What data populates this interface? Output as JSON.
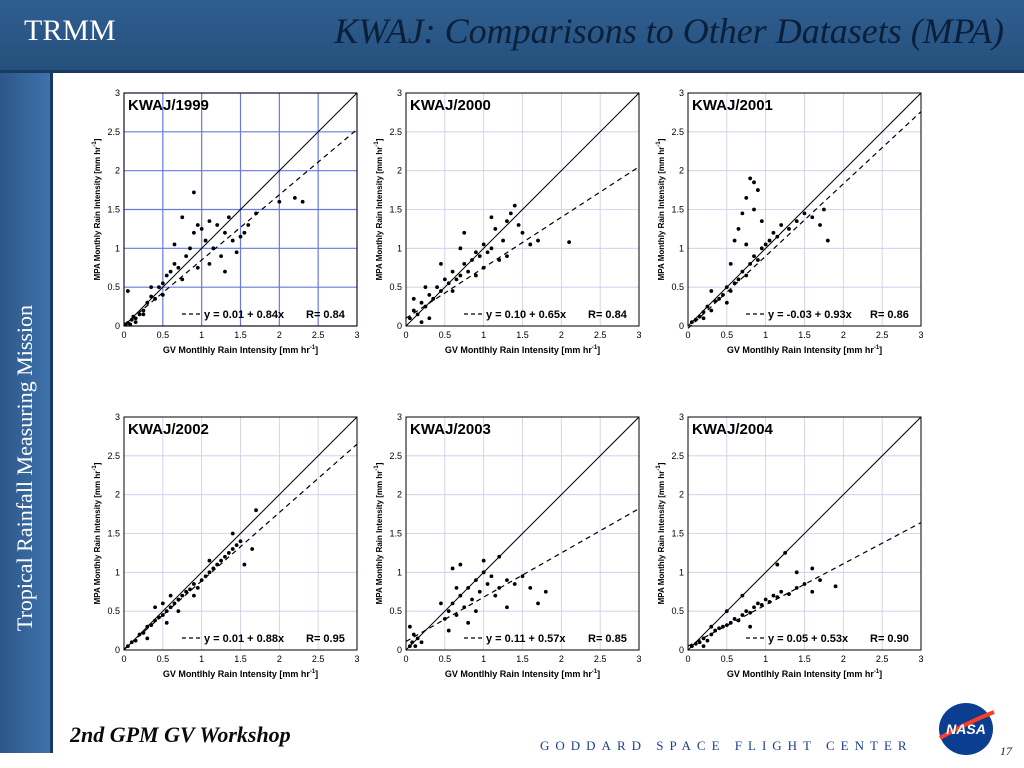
{
  "header": {
    "brand": "TRMM",
    "title": "KWAJ: Comparisons to Other Datasets (MPA)"
  },
  "sidebar": {
    "text": "Tropical Rainfall Measuring Mission"
  },
  "footer": {
    "workshop": "2nd GPM GV Workshop",
    "center": "GODDARD SPACE FLIGHT CENTER",
    "page": "17",
    "logo_text": "NASA"
  },
  "colors": {
    "header": "#2f5e8f",
    "sidebar": "#3f73ac",
    "grid": "#c8cce8",
    "grid_highlight": "#6a78e0",
    "footer_text": "#1c3f8c"
  },
  "chart_data": [
    {
      "type": "scatter",
      "title": "KWAJ/1999",
      "xlabel": "GV Montlhly Rain Intensity [mm hr",
      "ylabel": "MPA Monthly Rain Intensity [mm hr",
      "xlim": [
        0,
        3
      ],
      "ylim": [
        0,
        3
      ],
      "ticks": [
        "0",
        "0.5",
        "1",
        "1.5",
        "2",
        "2.5",
        "3"
      ],
      "grid": true,
      "legend_position": "bottom-right",
      "equation": "y = 0.01 + 0.84x",
      "r": "R= 0.84",
      "fit": {
        "intercept": 0.01,
        "slope": 0.84
      },
      "reference_line": "y = x",
      "points": [
        [
          0.05,
          0.04
        ],
        [
          0.1,
          0.08
        ],
        [
          0.15,
          0.1
        ],
        [
          0.2,
          0.15
        ],
        [
          0.25,
          0.2
        ],
        [
          0.3,
          0.3
        ],
        [
          0.35,
          0.38
        ],
        [
          0.4,
          0.35
        ],
        [
          0.45,
          0.5
        ],
        [
          0.5,
          0.55
        ],
        [
          0.55,
          0.65
        ],
        [
          0.6,
          0.7
        ],
        [
          0.65,
          0.8
        ],
        [
          0.7,
          0.75
        ],
        [
          0.75,
          0.6
        ],
        [
          0.8,
          0.9
        ],
        [
          0.85,
          1.0
        ],
        [
          0.9,
          1.2
        ],
        [
          0.95,
          1.3
        ],
        [
          1.0,
          1.25
        ],
        [
          1.05,
          1.1
        ],
        [
          1.1,
          1.35
        ],
        [
          1.15,
          1.0
        ],
        [
          1.2,
          1.3
        ],
        [
          1.25,
          0.9
        ],
        [
          1.3,
          1.2
        ],
        [
          1.35,
          1.4
        ],
        [
          1.4,
          1.1
        ],
        [
          1.5,
          1.15
        ],
        [
          1.6,
          1.3
        ],
        [
          1.7,
          1.45
        ],
        [
          2.0,
          1.6
        ],
        [
          2.2,
          1.65
        ],
        [
          2.3,
          1.6
        ],
        [
          0.9,
          1.72
        ],
        [
          0.65,
          1.05
        ],
        [
          0.5,
          0.4
        ],
        [
          0.35,
          0.5
        ],
        [
          0.25,
          0.15
        ],
        [
          0.15,
          0.05
        ],
        [
          0.05,
          0.45
        ],
        [
          0.02,
          0.02
        ],
        [
          0.08,
          0.02
        ],
        [
          0.12,
          0.12
        ],
        [
          1.1,
          0.8
        ],
        [
          1.3,
          0.7
        ],
        [
          0.75,
          1.4
        ],
        [
          0.95,
          0.75
        ],
        [
          1.45,
          0.95
        ],
        [
          1.55,
          1.2
        ]
      ]
    },
    {
      "type": "scatter",
      "title": "KWAJ/2000",
      "xlabel": "GV Montlhly Rain Intensity [mm hr",
      "ylabel": "MPA Monthly Rain Intensity [mm hr",
      "xlim": [
        0,
        3
      ],
      "ylim": [
        0,
        3
      ],
      "ticks": [
        "0",
        "0.5",
        "1",
        "1.5",
        "2",
        "2.5",
        "3"
      ],
      "grid": true,
      "legend_position": "bottom-right",
      "equation": "y = 0.10 + 0.65x",
      "r": "R= 0.84",
      "fit": {
        "intercept": 0.1,
        "slope": 0.65
      },
      "reference_line": "y = x",
      "points": [
        [
          0.05,
          0.1
        ],
        [
          0.1,
          0.2
        ],
        [
          0.15,
          0.15
        ],
        [
          0.2,
          0.3
        ],
        [
          0.25,
          0.25
        ],
        [
          0.3,
          0.4
        ],
        [
          0.35,
          0.35
        ],
        [
          0.4,
          0.5
        ],
        [
          0.45,
          0.45
        ],
        [
          0.5,
          0.6
        ],
        [
          0.55,
          0.55
        ],
        [
          0.6,
          0.7
        ],
        [
          0.65,
          0.6
        ],
        [
          0.7,
          0.65
        ],
        [
          0.75,
          0.8
        ],
        [
          0.8,
          0.7
        ],
        [
          0.85,
          0.85
        ],
        [
          0.9,
          0.95
        ],
        [
          0.95,
          0.9
        ],
        [
          1.0,
          1.05
        ],
        [
          1.05,
          0.95
        ],
        [
          1.1,
          1.0
        ],
        [
          1.15,
          1.25
        ],
        [
          1.2,
          0.85
        ],
        [
          1.25,
          1.1
        ],
        [
          1.3,
          1.35
        ],
        [
          1.35,
          1.45
        ],
        [
          1.4,
          1.55
        ],
        [
          1.45,
          1.3
        ],
        [
          1.5,
          1.2
        ],
        [
          1.6,
          1.05
        ],
        [
          1.7,
          1.1
        ],
        [
          2.1,
          1.08
        ],
        [
          0.3,
          0.1
        ],
        [
          0.2,
          0.05
        ],
        [
          0.1,
          0.35
        ],
        [
          0.7,
          1.0
        ],
        [
          0.75,
          1.2
        ],
        [
          0.6,
          0.45
        ],
        [
          0.9,
          0.65
        ],
        [
          1.0,
          0.75
        ],
        [
          1.1,
          1.4
        ],
        [
          1.3,
          0.9
        ],
        [
          0.45,
          0.8
        ],
        [
          0.25,
          0.5
        ]
      ]
    },
    {
      "type": "scatter",
      "title": "KWAJ/2001",
      "xlabel": "GV Montlhly Rain Intensity [mm hr",
      "ylabel": "MPA Monthly Rain Intensity [mm hr",
      "xlim": [
        0,
        3
      ],
      "ylim": [
        0,
        3
      ],
      "ticks": [
        "0",
        "0.5",
        "1",
        "1.5",
        "2",
        "2.5",
        "3"
      ],
      "grid": true,
      "legend_position": "bottom-right",
      "equation": "y = -0.03 + 0.93x",
      "r": "R= 0.86",
      "fit": {
        "intercept": -0.03,
        "slope": 0.93
      },
      "reference_line": "y = x",
      "points": [
        [
          0.05,
          0.05
        ],
        [
          0.1,
          0.08
        ],
        [
          0.15,
          0.12
        ],
        [
          0.2,
          0.18
        ],
        [
          0.25,
          0.25
        ],
        [
          0.3,
          0.2
        ],
        [
          0.35,
          0.32
        ],
        [
          0.4,
          0.35
        ],
        [
          0.45,
          0.4
        ],
        [
          0.5,
          0.5
        ],
        [
          0.55,
          0.45
        ],
        [
          0.6,
          0.55
        ],
        [
          0.65,
          0.6
        ],
        [
          0.7,
          0.7
        ],
        [
          0.75,
          0.65
        ],
        [
          0.8,
          0.8
        ],
        [
          0.85,
          0.9
        ],
        [
          0.9,
          0.85
        ],
        [
          0.95,
          1.0
        ],
        [
          1.0,
          1.05
        ],
        [
          1.05,
          1.1
        ],
        [
          1.1,
          1.2
        ],
        [
          1.15,
          1.15
        ],
        [
          1.2,
          1.3
        ],
        [
          1.3,
          1.25
        ],
        [
          1.4,
          1.35
        ],
        [
          1.5,
          1.45
        ],
        [
          1.6,
          1.4
        ],
        [
          1.7,
          1.3
        ],
        [
          1.75,
          1.5
        ],
        [
          1.8,
          1.1
        ],
        [
          0.8,
          1.9
        ],
        [
          0.85,
          1.85
        ],
        [
          0.9,
          1.75
        ],
        [
          0.75,
          1.65
        ],
        [
          0.7,
          1.45
        ],
        [
          0.65,
          1.25
        ],
        [
          0.6,
          1.1
        ],
        [
          0.85,
          1.5
        ],
        [
          0.95,
          1.35
        ],
        [
          0.75,
          1.05
        ],
        [
          0.55,
          0.8
        ],
        [
          0.5,
          0.3
        ],
        [
          0.3,
          0.45
        ],
        [
          0.2,
          0.1
        ]
      ]
    },
    {
      "type": "scatter",
      "title": "KWAJ/2002",
      "xlabel": "GV Montlhly Rain Intensity [mm hr",
      "ylabel": "MPA Monthly Rain Intensity [mm hr",
      "xlim": [
        0,
        3
      ],
      "ylim": [
        0,
        3
      ],
      "ticks": [
        "0",
        "0.5",
        "1",
        "1.5",
        "2",
        "2.5",
        "3"
      ],
      "grid": true,
      "legend_position": "bottom-right",
      "equation": "y = 0.01 + 0.88x",
      "r": "R= 0.95",
      "fit": {
        "intercept": 0.01,
        "slope": 0.88
      },
      "reference_line": "y = x",
      "points": [
        [
          0.05,
          0.05
        ],
        [
          0.1,
          0.1
        ],
        [
          0.15,
          0.12
        ],
        [
          0.2,
          0.2
        ],
        [
          0.25,
          0.22
        ],
        [
          0.3,
          0.3
        ],
        [
          0.35,
          0.32
        ],
        [
          0.4,
          0.38
        ],
        [
          0.45,
          0.42
        ],
        [
          0.5,
          0.45
        ],
        [
          0.55,
          0.5
        ],
        [
          0.6,
          0.55
        ],
        [
          0.65,
          0.6
        ],
        [
          0.7,
          0.65
        ],
        [
          0.75,
          0.7
        ],
        [
          0.8,
          0.75
        ],
        [
          0.85,
          0.78
        ],
        [
          0.9,
          0.85
        ],
        [
          0.95,
          0.8
        ],
        [
          1.0,
          0.9
        ],
        [
          1.05,
          0.95
        ],
        [
          1.1,
          1.0
        ],
        [
          1.15,
          1.05
        ],
        [
          1.2,
          1.1
        ],
        [
          1.25,
          1.15
        ],
        [
          1.3,
          1.2
        ],
        [
          1.35,
          1.25
        ],
        [
          1.4,
          1.3
        ],
        [
          1.45,
          1.35
        ],
        [
          1.5,
          1.4
        ],
        [
          1.55,
          1.1
        ],
        [
          1.7,
          1.8
        ],
        [
          1.65,
          1.3
        ],
        [
          1.4,
          1.5
        ],
        [
          1.1,
          1.15
        ],
        [
          0.9,
          0.7
        ],
        [
          0.4,
          0.55
        ],
        [
          0.3,
          0.15
        ],
        [
          0.55,
          0.35
        ],
        [
          0.6,
          0.7
        ],
        [
          0.7,
          0.5
        ],
        [
          0.5,
          0.6
        ]
      ]
    },
    {
      "type": "scatter",
      "title": "KWAJ/2003",
      "xlabel": "GV Montlhly Rain Intensity [mm hr",
      "ylabel": "MPA Monthly Rain Intensity [mm hr",
      "xlim": [
        0,
        3
      ],
      "ylim": [
        0,
        3
      ],
      "ticks": [
        "0",
        "0.5",
        "1",
        "1.5",
        "2",
        "2.5",
        "3"
      ],
      "grid": true,
      "legend_position": "bottom-right",
      "equation": "y = 0.11 + 0.57x",
      "r": "R= 0.85",
      "fit": {
        "intercept": 0.11,
        "slope": 0.57
      },
      "reference_line": "y = x",
      "points": [
        [
          0.05,
          0.05
        ],
        [
          0.08,
          0.1
        ],
        [
          0.1,
          0.2
        ],
        [
          0.12,
          0.05
        ],
        [
          0.15,
          0.15
        ],
        [
          0.2,
          0.1
        ],
        [
          0.05,
          0.3
        ],
        [
          0.5,
          0.4
        ],
        [
          0.55,
          0.5
        ],
        [
          0.6,
          0.6
        ],
        [
          0.65,
          0.45
        ],
        [
          0.7,
          0.7
        ],
        [
          0.75,
          0.55
        ],
        [
          0.8,
          0.8
        ],
        [
          0.85,
          0.65
        ],
        [
          0.9,
          0.9
        ],
        [
          0.95,
          0.75
        ],
        [
          1.0,
          1.0
        ],
        [
          1.05,
          0.85
        ],
        [
          1.1,
          0.95
        ],
        [
          1.15,
          0.7
        ],
        [
          1.2,
          0.8
        ],
        [
          1.3,
          0.9
        ],
        [
          1.4,
          0.85
        ],
        [
          1.5,
          0.95
        ],
        [
          1.6,
          0.8
        ],
        [
          1.7,
          0.6
        ],
        [
          1.8,
          0.75
        ],
        [
          0.6,
          1.05
        ],
        [
          0.7,
          1.1
        ],
        [
          0.8,
          0.35
        ],
        [
          0.9,
          0.5
        ],
        [
          1.0,
          1.15
        ],
        [
          0.55,
          0.25
        ],
        [
          0.45,
          0.6
        ],
        [
          1.2,
          1.2
        ],
        [
          1.3,
          0.55
        ],
        [
          0.65,
          0.8
        ]
      ]
    },
    {
      "type": "scatter",
      "title": "KWAJ/2004",
      "xlabel": "GV Montlhly Rain Intensity [mm hr",
      "ylabel": "MPA Monthly Rain Intensity [mm hr",
      "xlim": [
        0,
        3
      ],
      "ylim": [
        0,
        3
      ],
      "ticks": [
        "0",
        "0.5",
        "1",
        "1.5",
        "2",
        "2.5",
        "3"
      ],
      "grid": true,
      "legend_position": "bottom-right",
      "equation": "y = 0.05 + 0.53x",
      "r": "R= 0.90",
      "fit": {
        "intercept": 0.05,
        "slope": 0.53
      },
      "reference_line": "y = x",
      "points": [
        [
          0.05,
          0.05
        ],
        [
          0.1,
          0.08
        ],
        [
          0.15,
          0.1
        ],
        [
          0.2,
          0.15
        ],
        [
          0.25,
          0.12
        ],
        [
          0.3,
          0.2
        ],
        [
          0.35,
          0.25
        ],
        [
          0.4,
          0.28
        ],
        [
          0.45,
          0.3
        ],
        [
          0.5,
          0.32
        ],
        [
          0.55,
          0.35
        ],
        [
          0.6,
          0.4
        ],
        [
          0.65,
          0.38
        ],
        [
          0.7,
          0.45
        ],
        [
          0.75,
          0.5
        ],
        [
          0.8,
          0.48
        ],
        [
          0.85,
          0.55
        ],
        [
          0.9,
          0.6
        ],
        [
          0.95,
          0.58
        ],
        [
          1.0,
          0.65
        ],
        [
          1.05,
          0.62
        ],
        [
          1.1,
          0.7
        ],
        [
          1.15,
          0.68
        ],
        [
          1.2,
          0.75
        ],
        [
          1.3,
          0.72
        ],
        [
          1.4,
          0.8
        ],
        [
          1.5,
          0.85
        ],
        [
          1.6,
          0.75
        ],
        [
          1.7,
          0.9
        ],
        [
          1.9,
          0.82
        ],
        [
          1.25,
          1.25
        ],
        [
          1.15,
          1.1
        ],
        [
          1.4,
          1.0
        ],
        [
          1.6,
          1.05
        ],
        [
          0.7,
          0.7
        ],
        [
          0.8,
          0.3
        ],
        [
          0.2,
          0.05
        ],
        [
          0.3,
          0.3
        ],
        [
          0.5,
          0.5
        ]
      ]
    }
  ]
}
